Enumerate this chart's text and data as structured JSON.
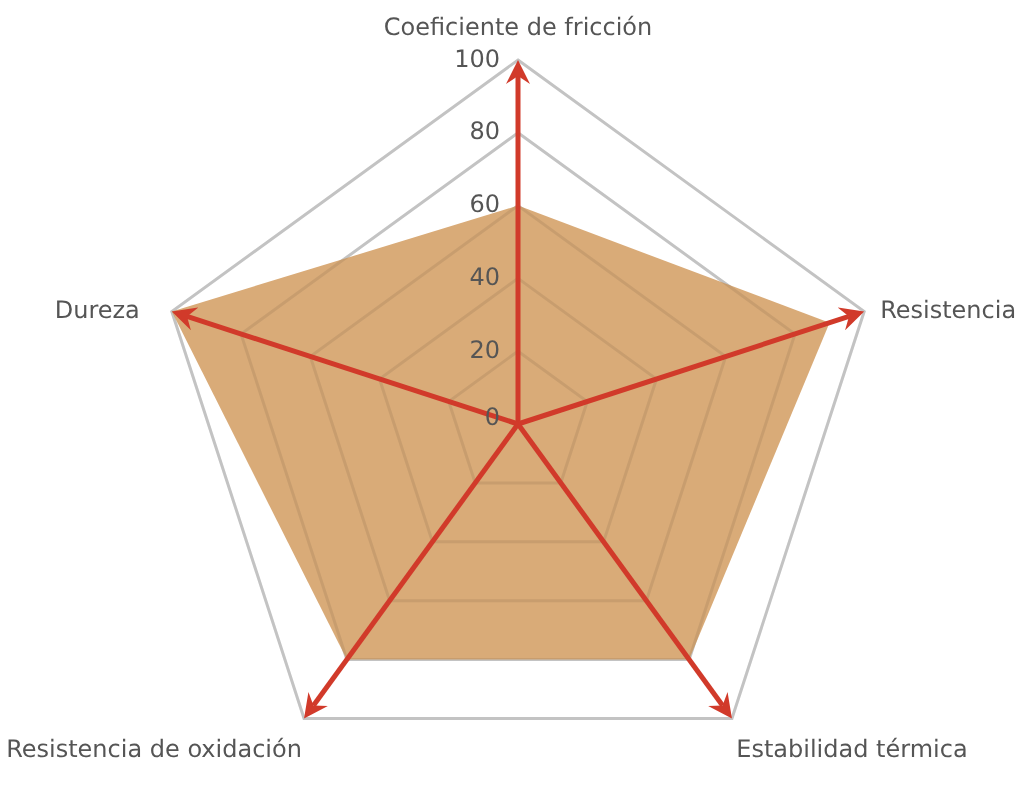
{
  "chart_data": {
    "type": "radar",
    "categories": [
      "Coeficiente de fricción",
      "Resistencia",
      "Estabilidad térmica",
      "Resistencia de oxidación",
      "Dureza"
    ],
    "series": [
      {
        "color": "#d9ab78",
        "values": [
          60,
          90,
          80,
          80,
          100
        ]
      }
    ],
    "ylim": [
      0,
      100
    ],
    "yticks": [
      0,
      20,
      40,
      60,
      80,
      100
    ],
    "grid": true,
    "legend": false
  }
}
